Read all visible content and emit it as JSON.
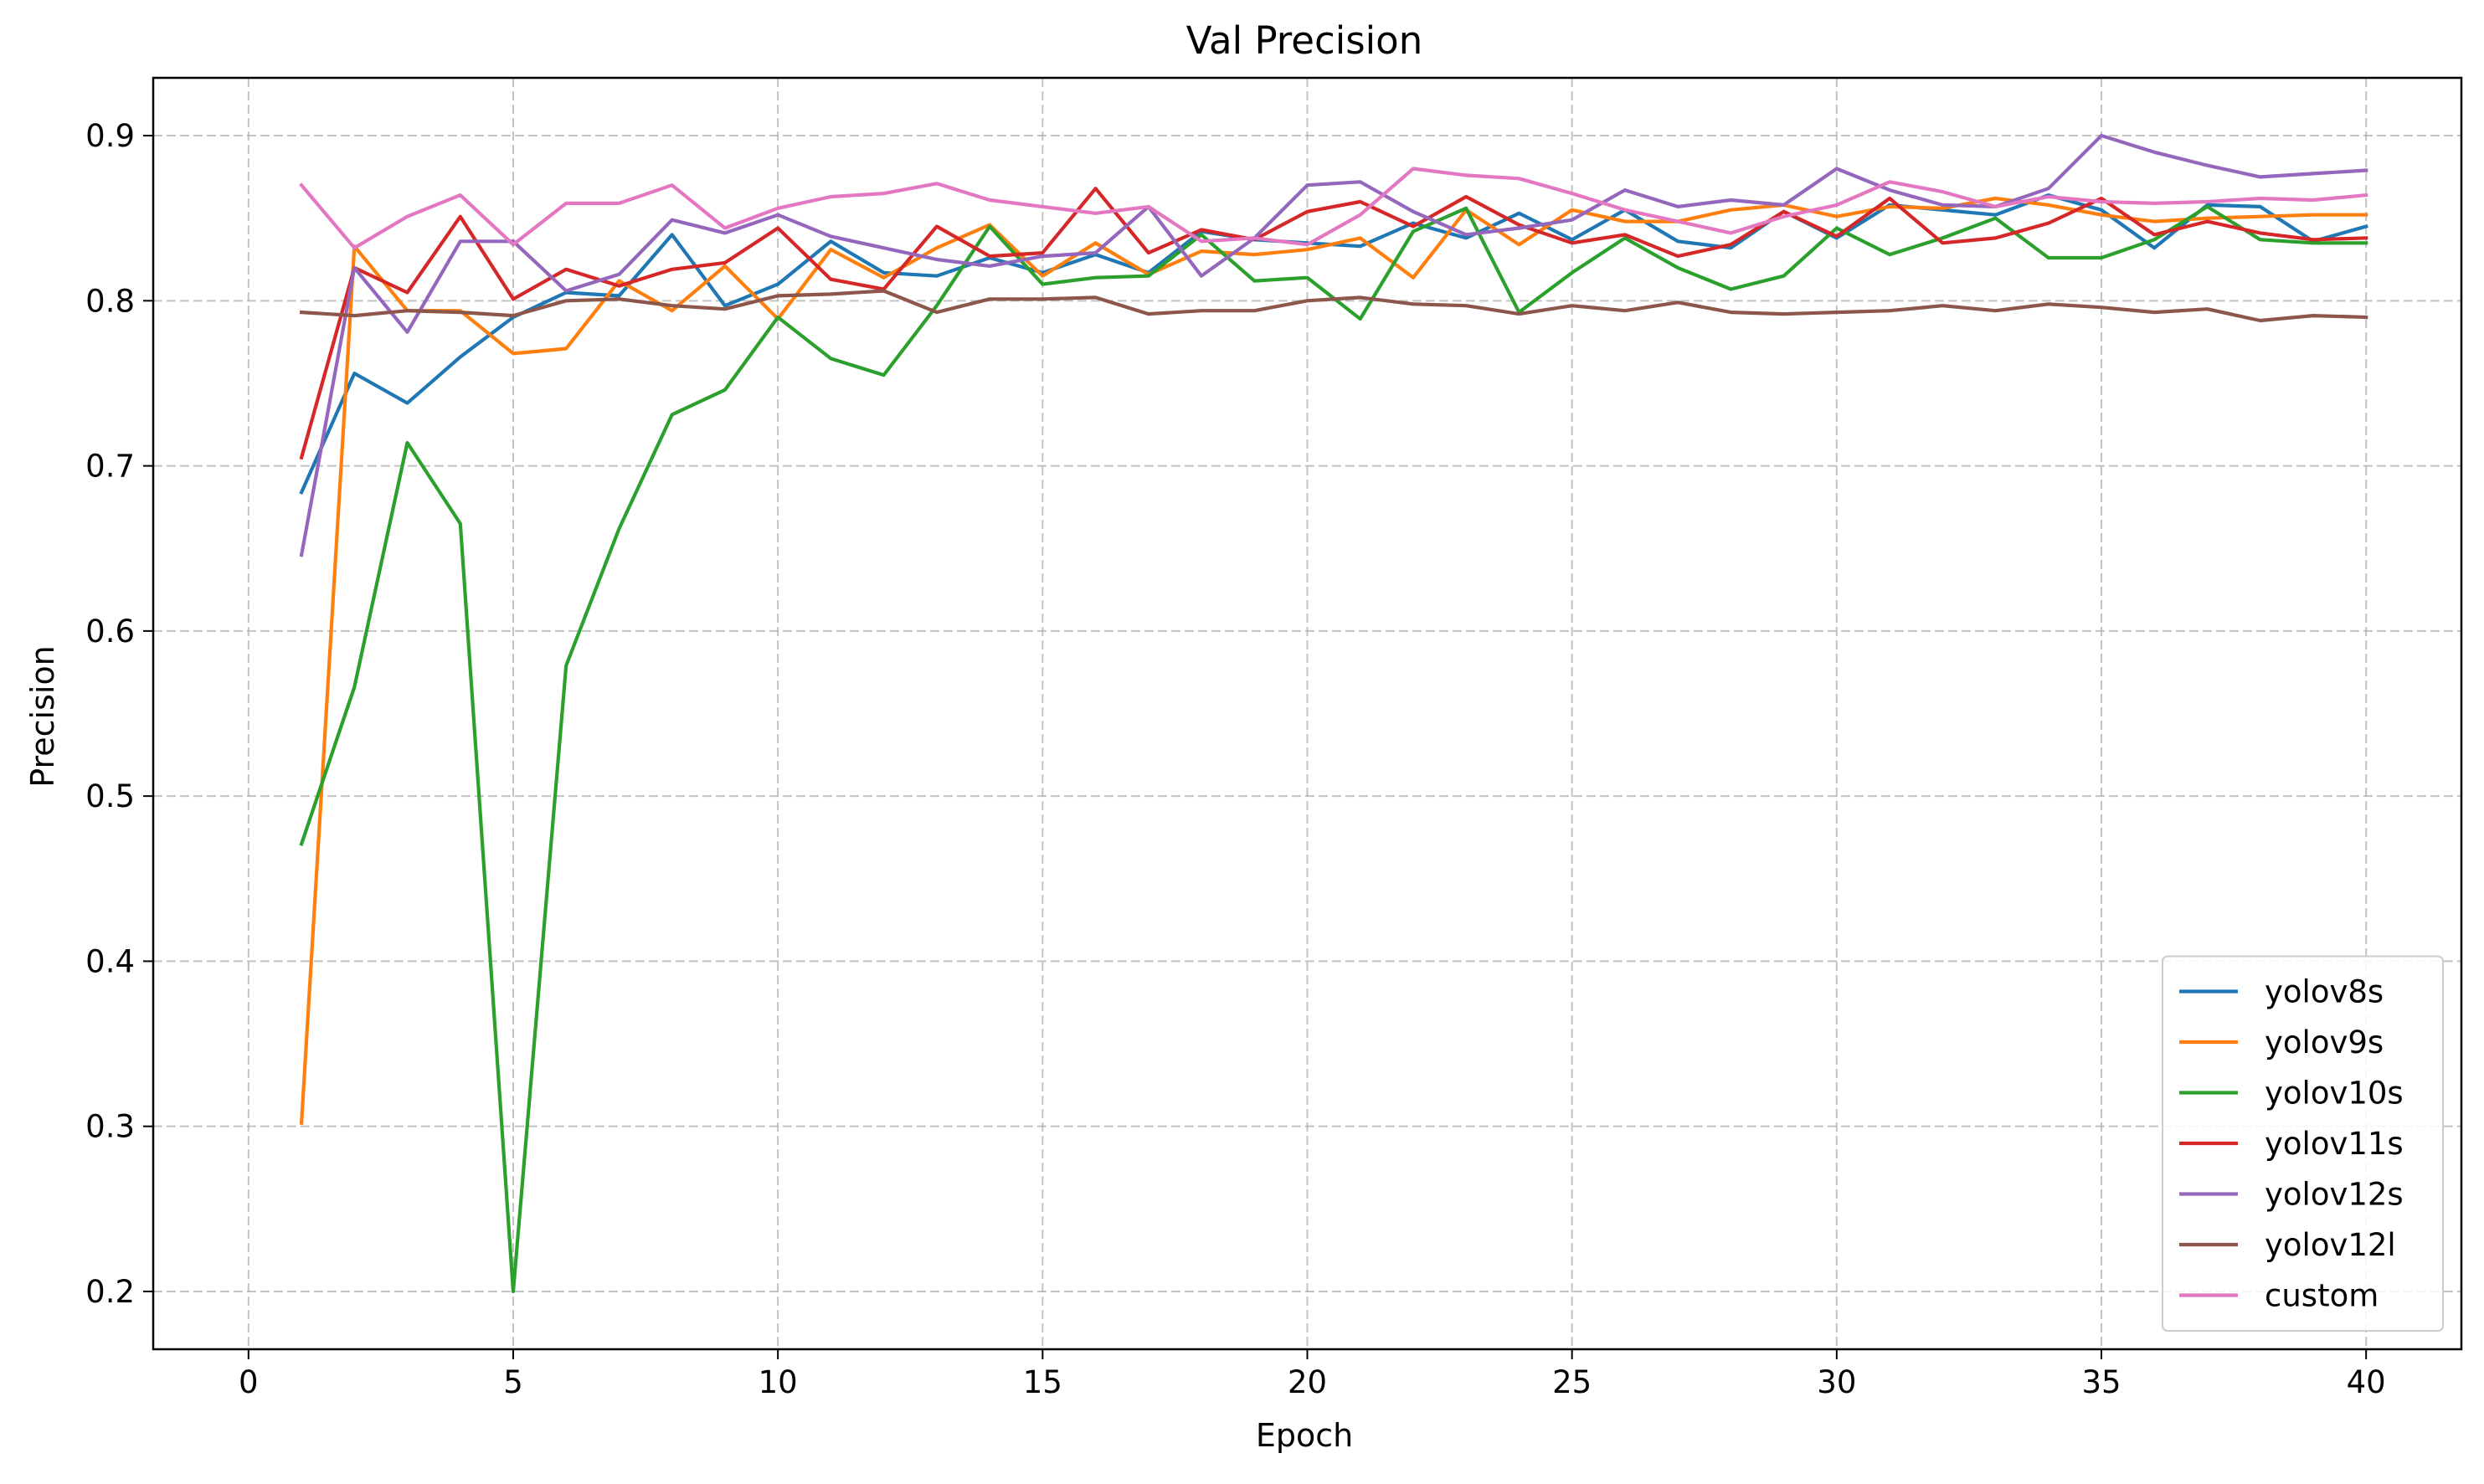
{
  "chart_data": {
    "type": "line",
    "title": "Val Precision",
    "xlabel": "Epoch",
    "ylabel": "Precision",
    "xlim": [
      -1.8,
      41.8
    ],
    "ylim": [
      0.165,
      0.935
    ],
    "xticks": [
      0,
      5,
      10,
      15,
      20,
      25,
      30,
      35,
      40
    ],
    "yticks": [
      0.2,
      0.3,
      0.4,
      0.5,
      0.6,
      0.7,
      0.8,
      0.9
    ],
    "xtick_labels": [
      "0",
      "5",
      "10",
      "15",
      "20",
      "25",
      "30",
      "35",
      "40"
    ],
    "ytick_labels": [
      "0.2",
      "0.3",
      "0.4",
      "0.5",
      "0.6",
      "0.7",
      "0.8",
      "0.9"
    ],
    "grid": true,
    "legend_position": "lower-right",
    "x": [
      1,
      2,
      3,
      4,
      5,
      6,
      7,
      8,
      9,
      10,
      11,
      12,
      13,
      14,
      15,
      16,
      17,
      18,
      19,
      20,
      21,
      22,
      23,
      24,
      25,
      26,
      27,
      28,
      29,
      30,
      31,
      32,
      33,
      34,
      35,
      36,
      37,
      38,
      39,
      40
    ],
    "series": [
      {
        "name": "yolov8s",
        "color": "#1f77b4",
        "values": [
          0.684,
          0.756,
          0.738,
          0.766,
          0.79,
          0.805,
          0.803,
          0.84,
          0.797,
          0.81,
          0.836,
          0.817,
          0.815,
          0.826,
          0.817,
          0.828,
          0.817,
          0.842,
          0.837,
          0.835,
          0.833,
          0.847,
          0.838,
          0.853,
          0.837,
          0.855,
          0.836,
          0.832,
          0.854,
          0.838,
          0.858,
          0.855,
          0.852,
          0.864,
          0.855,
          0.832,
          0.858,
          0.857,
          0.836,
          0.845
        ]
      },
      {
        "name": "yolov9s",
        "color": "#ff7f0e",
        "values": [
          0.302,
          0.833,
          0.794,
          0.794,
          0.768,
          0.771,
          0.812,
          0.794,
          0.821,
          0.789,
          0.831,
          0.814,
          0.832,
          0.846,
          0.815,
          0.835,
          0.816,
          0.83,
          0.828,
          0.831,
          0.838,
          0.814,
          0.855,
          0.834,
          0.855,
          0.848,
          0.848,
          0.855,
          0.858,
          0.851,
          0.857,
          0.856,
          0.862,
          0.858,
          0.852,
          0.848,
          0.85,
          0.851,
          0.852,
          0.852
        ]
      },
      {
        "name": "yolov10s",
        "color": "#2ca02c",
        "values": [
          0.471,
          0.566,
          0.714,
          0.665,
          0.2,
          0.579,
          0.662,
          0.731,
          0.746,
          0.79,
          0.765,
          0.755,
          0.797,
          0.845,
          0.81,
          0.814,
          0.815,
          0.84,
          0.812,
          0.814,
          0.789,
          0.842,
          0.856,
          0.793,
          0.817,
          0.838,
          0.82,
          0.807,
          0.815,
          0.844,
          0.828,
          0.838,
          0.85,
          0.826,
          0.826,
          0.837,
          0.857,
          0.837,
          0.835,
          0.835
        ]
      },
      {
        "name": "yolov11s",
        "color": "#d62728",
        "values": [
          0.705,
          0.82,
          0.805,
          0.851,
          0.801,
          0.819,
          0.809,
          0.819,
          0.823,
          0.844,
          0.813,
          0.807,
          0.845,
          0.827,
          0.829,
          0.868,
          0.829,
          0.843,
          0.837,
          0.854,
          0.86,
          0.845,
          0.863,
          0.846,
          0.835,
          0.84,
          0.827,
          0.834,
          0.854,
          0.839,
          0.862,
          0.835,
          0.838,
          0.847,
          0.862,
          0.84,
          0.848,
          0.841,
          0.837,
          0.838
        ]
      },
      {
        "name": "yolov12s",
        "color": "#9467bd",
        "values": [
          0.646,
          0.82,
          0.781,
          0.836,
          0.836,
          0.806,
          0.816,
          0.849,
          0.841,
          0.852,
          0.839,
          0.832,
          0.825,
          0.821,
          0.827,
          0.829,
          0.857,
          0.815,
          0.838,
          0.87,
          0.872,
          0.854,
          0.84,
          0.844,
          0.849,
          0.867,
          0.857,
          0.861,
          0.858,
          0.88,
          0.867,
          0.858,
          0.857,
          0.868,
          0.9,
          0.89,
          0.882,
          0.875,
          0.877,
          0.879
        ]
      },
      {
        "name": "yolov12l",
        "color": "#8c564b",
        "values": [
          0.793,
          0.791,
          0.794,
          0.793,
          0.791,
          0.8,
          0.801,
          0.797,
          0.795,
          0.803,
          0.804,
          0.806,
          0.793,
          0.801,
          0.801,
          0.802,
          0.792,
          0.794,
          0.794,
          0.8,
          0.802,
          0.798,
          0.797,
          0.792,
          0.797,
          0.794,
          0.799,
          0.793,
          0.792,
          0.793,
          0.794,
          0.797,
          0.794,
          0.798,
          0.796,
          0.793,
          0.795,
          0.788,
          0.791,
          0.79
        ]
      },
      {
        "name": "custom",
        "color": "#e377c2",
        "values": [
          0.87,
          0.832,
          0.851,
          0.864,
          0.834,
          0.859,
          0.859,
          0.87,
          0.844,
          0.856,
          0.863,
          0.865,
          0.871,
          0.861,
          0.857,
          0.853,
          0.857,
          0.836,
          0.838,
          0.834,
          0.852,
          0.88,
          0.876,
          0.874,
          0.865,
          0.855,
          0.848,
          0.841,
          0.851,
          0.858,
          0.872,
          0.866,
          0.857,
          0.863,
          0.86,
          0.859,
          0.86,
          0.862,
          0.861,
          0.864
        ]
      }
    ]
  }
}
